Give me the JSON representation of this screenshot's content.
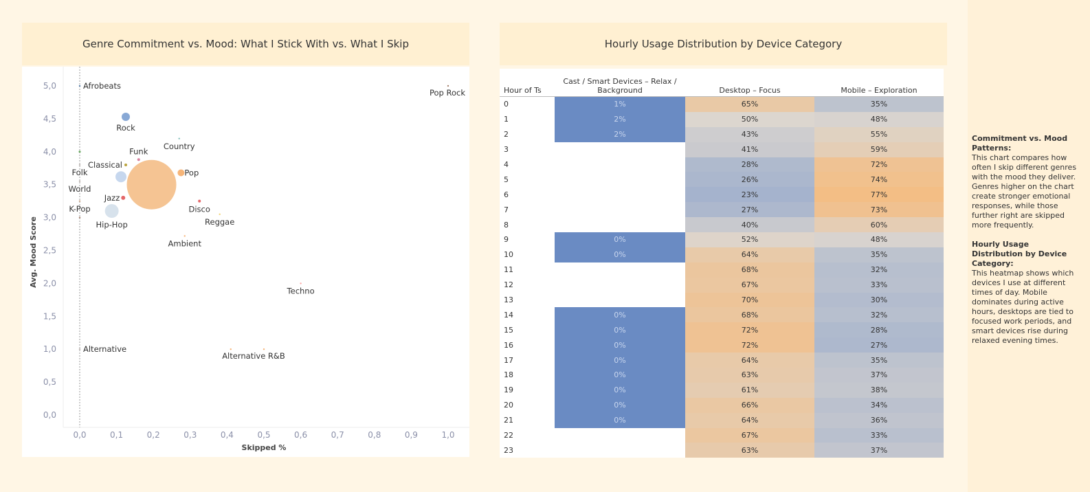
{
  "scatter_title": "Genre Commitment vs. Mood: What I Stick With vs. What I Skip",
  "heatmap_title": "Hourly Usage Distribution by Device Category",
  "chart_data": [
    {
      "type": "scatter",
      "title": "Genre Commitment vs. Mood: What I Stick With vs. What I Skip",
      "xlabel": "Skipped %",
      "ylabel": "Avg. Mood Score",
      "xlim": [
        0,
        1
      ],
      "ylim": [
        0,
        5
      ],
      "xticks": [
        "0,0",
        "0,1",
        "0,2",
        "0,3",
        "0,4",
        "0,5",
        "0,6",
        "0,7",
        "0,8",
        "0,9",
        "1,0"
      ],
      "yticks": [
        "0,0",
        "0,5",
        "1,0",
        "1,5",
        "2,0",
        "2,5",
        "3,0",
        "3,5",
        "4,0",
        "4,5",
        "5,0"
      ],
      "points": [
        {
          "label": "Afrobeats",
          "x": 0,
          "y": 5.0,
          "size": 1,
          "color": "#4e79a7",
          "lpos": "right"
        },
        {
          "label": "Rock",
          "x": 0.125,
          "y": 4.53,
          "size": 6,
          "color": "#7b9fd0",
          "lpos": "below"
        },
        {
          "label": "Country",
          "x": 0.27,
          "y": 4.2,
          "size": 1,
          "color": "#76b7b2",
          "lpos": "below"
        },
        {
          "label": "",
          "x": 0,
          "y": 4.0,
          "size": 1.5,
          "color": "#59a14f",
          "lpos": "none"
        },
        {
          "label": "Funk",
          "x": 0.16,
          "y": 3.88,
          "size": 2,
          "color": "#d37295",
          "lpos": "above"
        },
        {
          "label": "Classical",
          "x": 0.125,
          "y": 3.8,
          "size": 2,
          "color": "#b39a2a",
          "lpos": "left"
        },
        {
          "label": "Folk",
          "x": 0,
          "y": 3.8,
          "size": 1,
          "color": "#bab0ac",
          "lpos": "below"
        },
        {
          "label": "Pop",
          "x": 0.275,
          "y": 3.68,
          "size": 5,
          "color": "#f5ad6a",
          "lpos": "right"
        },
        {
          "label": "",
          "x": 0.112,
          "y": 3.62,
          "size": 8,
          "color": "#c0d3ec",
          "lpos": "none"
        },
        {
          "label": "",
          "x": 0.195,
          "y": 3.5,
          "size": 36,
          "color": "#f4be87",
          "lpos": "none"
        },
        {
          "label": "World",
          "x": 0,
          "y": 3.55,
          "size": 1,
          "color": "#bab0ac",
          "lpos": "below"
        },
        {
          "label": "Jazz",
          "x": 0.118,
          "y": 3.3,
          "size": 3,
          "color": "#e15759",
          "lpos": "left"
        },
        {
          "label": "K-Pop",
          "x": 0,
          "y": 3.25,
          "size": 1,
          "color": "#c49a7a",
          "lpos": "below"
        },
        {
          "label": "Disco",
          "x": 0.325,
          "y": 3.25,
          "size": 2,
          "color": "#e15759",
          "lpos": "below"
        },
        {
          "label": "Hip-Hop",
          "x": 0.087,
          "y": 3.1,
          "size": 10,
          "color": "#d3dfea",
          "lpos": "below"
        },
        {
          "label": "Reggae",
          "x": 0.38,
          "y": 3.05,
          "size": 1,
          "color": "#f1ce63",
          "lpos": "below"
        },
        {
          "label": "",
          "x": 0,
          "y": 3.0,
          "size": 1,
          "color": "#9c755f",
          "lpos": "none"
        },
        {
          "label": "Ambient",
          "x": 0.285,
          "y": 2.72,
          "size": 1,
          "color": "#f5ad6a",
          "lpos": "below"
        },
        {
          "label": "Techno",
          "x": 0.6,
          "y": 2.0,
          "size": 1,
          "color": "#ff9d9a",
          "lpos": "below"
        },
        {
          "label": "Alternative",
          "x": 0,
          "y": 1.0,
          "size": 1,
          "color": "#bab0ac",
          "lpos": "right"
        },
        {
          "label": "",
          "x": 0.41,
          "y": 1.0,
          "size": 1,
          "color": "#f5ad6a",
          "lpos": "none"
        },
        {
          "label": "Alternative R&B",
          "x": 0.5,
          "y": 1.0,
          "size": 1,
          "color": "#f5ad6a",
          "lpos": "belowleft"
        },
        {
          "label": "Pop Rock",
          "x": 1.0,
          "y": 5.0,
          "size": 1,
          "color": "#9c755f",
          "lpos": "belowleft"
        }
      ]
    },
    {
      "type": "heatmap",
      "title": "Hourly Usage Distribution by Device Category",
      "row_header": "Hour of Ts",
      "columns": [
        "Cast / Smart Devices – Relax / Background",
        "Desktop – Focus",
        "Mobile – Exploration"
      ],
      "rows": [
        {
          "hour": "0",
          "values": [
            "1%",
            "65%",
            "35%"
          ]
        },
        {
          "hour": "1",
          "values": [
            "2%",
            "50%",
            "48%"
          ]
        },
        {
          "hour": "2",
          "values": [
            "2%",
            "43%",
            "55%"
          ]
        },
        {
          "hour": "3",
          "values": [
            "",
            "41%",
            "59%"
          ]
        },
        {
          "hour": "4",
          "values": [
            "",
            "28%",
            "72%"
          ]
        },
        {
          "hour": "5",
          "values": [
            "",
            "26%",
            "74%"
          ]
        },
        {
          "hour": "6",
          "values": [
            "",
            "23%",
            "77%"
          ]
        },
        {
          "hour": "7",
          "values": [
            "",
            "27%",
            "73%"
          ]
        },
        {
          "hour": "8",
          "values": [
            "",
            "40%",
            "60%"
          ]
        },
        {
          "hour": "9",
          "values": [
            "0%",
            "52%",
            "48%"
          ]
        },
        {
          "hour": "10",
          "values": [
            "0%",
            "64%",
            "35%"
          ]
        },
        {
          "hour": "11",
          "values": [
            "",
            "68%",
            "32%"
          ]
        },
        {
          "hour": "12",
          "values": [
            "",
            "67%",
            "33%"
          ]
        },
        {
          "hour": "13",
          "values": [
            "",
            "70%",
            "30%"
          ]
        },
        {
          "hour": "14",
          "values": [
            "0%",
            "68%",
            "32%"
          ]
        },
        {
          "hour": "15",
          "values": [
            "0%",
            "72%",
            "28%"
          ]
        },
        {
          "hour": "16",
          "values": [
            "0%",
            "72%",
            "27%"
          ]
        },
        {
          "hour": "17",
          "values": [
            "0%",
            "64%",
            "35%"
          ]
        },
        {
          "hour": "18",
          "values": [
            "0%",
            "63%",
            "37%"
          ]
        },
        {
          "hour": "19",
          "values": [
            "0%",
            "61%",
            "38%"
          ]
        },
        {
          "hour": "20",
          "values": [
            "0%",
            "66%",
            "34%"
          ]
        },
        {
          "hour": "21",
          "values": [
            "0%",
            "64%",
            "36%"
          ]
        },
        {
          "hour": "22",
          "values": [
            "",
            "67%",
            "33%"
          ]
        },
        {
          "hour": "23",
          "values": [
            "",
            "63%",
            "37%"
          ]
        }
      ]
    }
  ],
  "side": {
    "h1": "Commitment vs. Mood Patterns:",
    "p1": "This chart compares how often I skip different genres with the mood they deliver. Genres higher on the chart create stronger emotional responses, while those further right are skipped more frequently.",
    "h2": "Hourly Usage Distribution by Device Category:",
    "p2": "This heatmap shows which devices I use at different times of day. Mobile dominates during active hours, desktops are tied to focused work periods, and smart devices rise during relaxed evening times."
  }
}
